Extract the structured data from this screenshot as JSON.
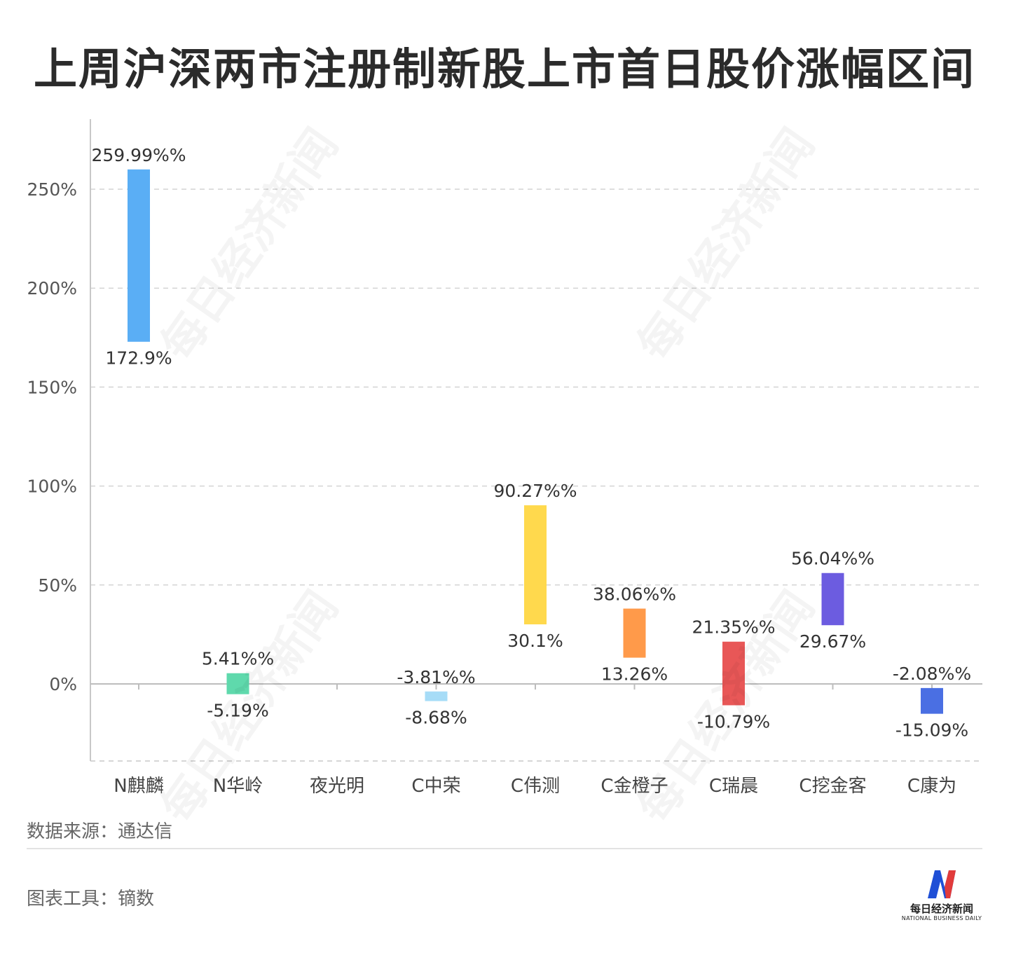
{
  "title": "上周沪深两市注册制新股上市首日股价涨幅区间",
  "source_label": "数据来源：通达信",
  "tool_label": "图表工具：镝数",
  "logo": {
    "cn": "每日经济新闻",
    "en": "NATIONAL BUSINESS DAILY"
  },
  "watermark": "每日经济新闻",
  "chart_data": {
    "type": "bar",
    "subtype": "floating-range",
    "categories": [
      "N麒麟",
      "N华岭",
      "夜光明",
      "C中荣",
      "C伟测",
      "C金橙子",
      "C瑞晨",
      "C挖金客",
      "C康为"
    ],
    "series": [
      {
        "high": [
          259.99,
          5.41,
          null,
          -3.81,
          90.27,
          38.06,
          21.35,
          56.04,
          -2.08
        ],
        "low": [
          172.9,
          -5.19,
          null,
          -8.68,
          30.1,
          13.26,
          -10.79,
          29.67,
          -15.09
        ]
      }
    ],
    "high_labels": [
      "259.99%%",
      "5.41%%",
      "",
      "-3.81%%",
      "90.27%%",
      "38.06%%",
      "21.35%%",
      "56.04%%",
      "-2.08%%"
    ],
    "low_labels": [
      "172.9%",
      "-5.19%",
      "",
      "-8.68%",
      "30.1%",
      "13.26%",
      "-10.79%",
      "29.67%",
      "-15.09%"
    ],
    "colors": [
      "#5aaef5",
      "#5fd9ac",
      "#cccccc",
      "#a6dcf7",
      "#ffd94d",
      "#ff9a4a",
      "#e85757",
      "#6c5ce0",
      "#4a6fe3"
    ],
    "yticks": [
      0,
      50,
      100,
      150,
      200,
      250
    ],
    "ytick_labels": [
      "0%",
      "50%",
      "100%",
      "150%",
      "200%",
      "250%"
    ],
    "ylim": [
      -39,
      290
    ],
    "grid": true,
    "xlabel": "",
    "ylabel": ""
  }
}
